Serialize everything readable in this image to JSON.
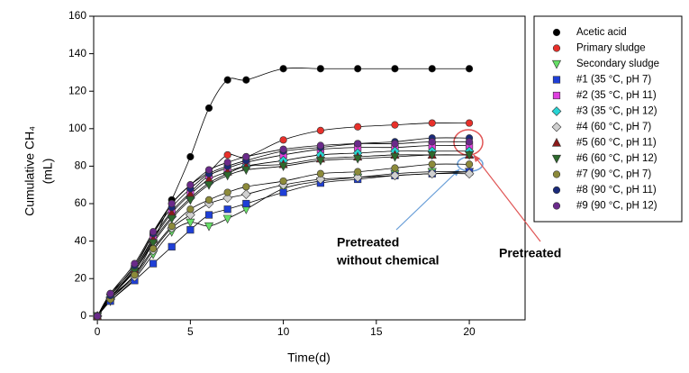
{
  "chart_data": {
    "type": "scatter",
    "xlabel": "Time(d)",
    "ylabel": "Cumulative CH₄",
    "ylabel_unit": "(mL)",
    "xlim": [
      -0.2,
      23
    ],
    "ylim": [
      -2,
      160
    ],
    "xticks": [
      0,
      5,
      10,
      15,
      20
    ],
    "yticks": [
      0,
      20,
      40,
      60,
      80,
      100,
      120,
      140,
      160
    ],
    "fit_curves": true,
    "x": [
      0,
      0.7,
      2,
      3,
      4,
      5,
      6,
      7,
      8,
      10,
      12,
      14,
      16,
      18,
      20
    ],
    "series": [
      {
        "name": "Acetic acid",
        "color": "#000000",
        "marker": "circle",
        "values": [
          0,
          10,
          22,
          40,
          62,
          85,
          111,
          126,
          126,
          132,
          132,
          132,
          132,
          132,
          132
        ]
      },
      {
        "name": "Primary sludge",
        "color": "#e8302a",
        "marker": "circle",
        "values": [
          0,
          12,
          26,
          44,
          60,
          70,
          77,
          86,
          85,
          94,
          99,
          101,
          102,
          103,
          103
        ]
      },
      {
        "name": "Secondary sludge",
        "color": "#66e066",
        "marker": "triangle-down",
        "values": [
          0,
          8,
          20,
          33,
          45,
          50,
          48,
          52,
          57,
          68,
          72,
          74,
          76,
          77,
          77
        ]
      },
      {
        "name": "#1 (35 °C, pH 7)",
        "color": "#1f3fd6",
        "marker": "square",
        "values": [
          0,
          8,
          19,
          28,
          37,
          46,
          54,
          57,
          60,
          66,
          71,
          73,
          75,
          76,
          77
        ]
      },
      {
        "name": "#2 (35 °C, pH 11)",
        "color": "#e040e0",
        "marker": "square",
        "values": [
          0,
          10,
          25,
          42,
          56,
          66,
          75,
          79,
          82,
          86,
          89,
          90,
          90,
          91,
          91
        ]
      },
      {
        "name": "#3 (35 °C, pH 12)",
        "color": "#27d4d4",
        "marker": "diamond",
        "values": [
          0,
          10,
          24,
          40,
          53,
          63,
          71,
          76,
          80,
          83,
          86,
          87,
          88,
          88,
          88
        ]
      },
      {
        "name": "#4 (60 °C, pH 7)",
        "color": "#d0d0d0",
        "marker": "diamond",
        "values": [
          0,
          9,
          21,
          35,
          47,
          54,
          60,
          63,
          65,
          70,
          73,
          74,
          75,
          76,
          76
        ]
      },
      {
        "name": "#5 (60 °C, pH 11)",
        "color": "#8b1a1a",
        "marker": "triangle-up",
        "values": [
          0,
          11,
          25,
          41,
          55,
          65,
          73,
          77,
          80,
          81,
          84,
          85,
          86,
          86,
          86
        ]
      },
      {
        "name": "#6 (60 °C, pH 12)",
        "color": "#2d6a2d",
        "marker": "triangle-down",
        "values": [
          0,
          10,
          24,
          39,
          52,
          62,
          70,
          75,
          78,
          80,
          83,
          84,
          85,
          86,
          86
        ]
      },
      {
        "name": "#7 (90 °C, pH 7)",
        "color": "#8c8a3a",
        "marker": "circle",
        "values": [
          0,
          9,
          22,
          36,
          48,
          57,
          62,
          66,
          69,
          72,
          76,
          77,
          79,
          81,
          81
        ]
      },
      {
        "name": "#8 (90 °C, pH 11)",
        "color": "#1a2a7a",
        "marker": "circle",
        "values": [
          0,
          11,
          27,
          44,
          58,
          68,
          76,
          80,
          83,
          88,
          90,
          92,
          93,
          95,
          95
        ]
      },
      {
        "name": "#9 (90 °C, pH 12)",
        "color": "#6a2a8a",
        "marker": "circle",
        "values": [
          0,
          12,
          28,
          45,
          60,
          70,
          78,
          82,
          85,
          89,
          91,
          92,
          92,
          93,
          93
        ]
      }
    ],
    "annotations": [
      "Pretreated",
      "without chemical",
      "Pretreated"
    ]
  }
}
